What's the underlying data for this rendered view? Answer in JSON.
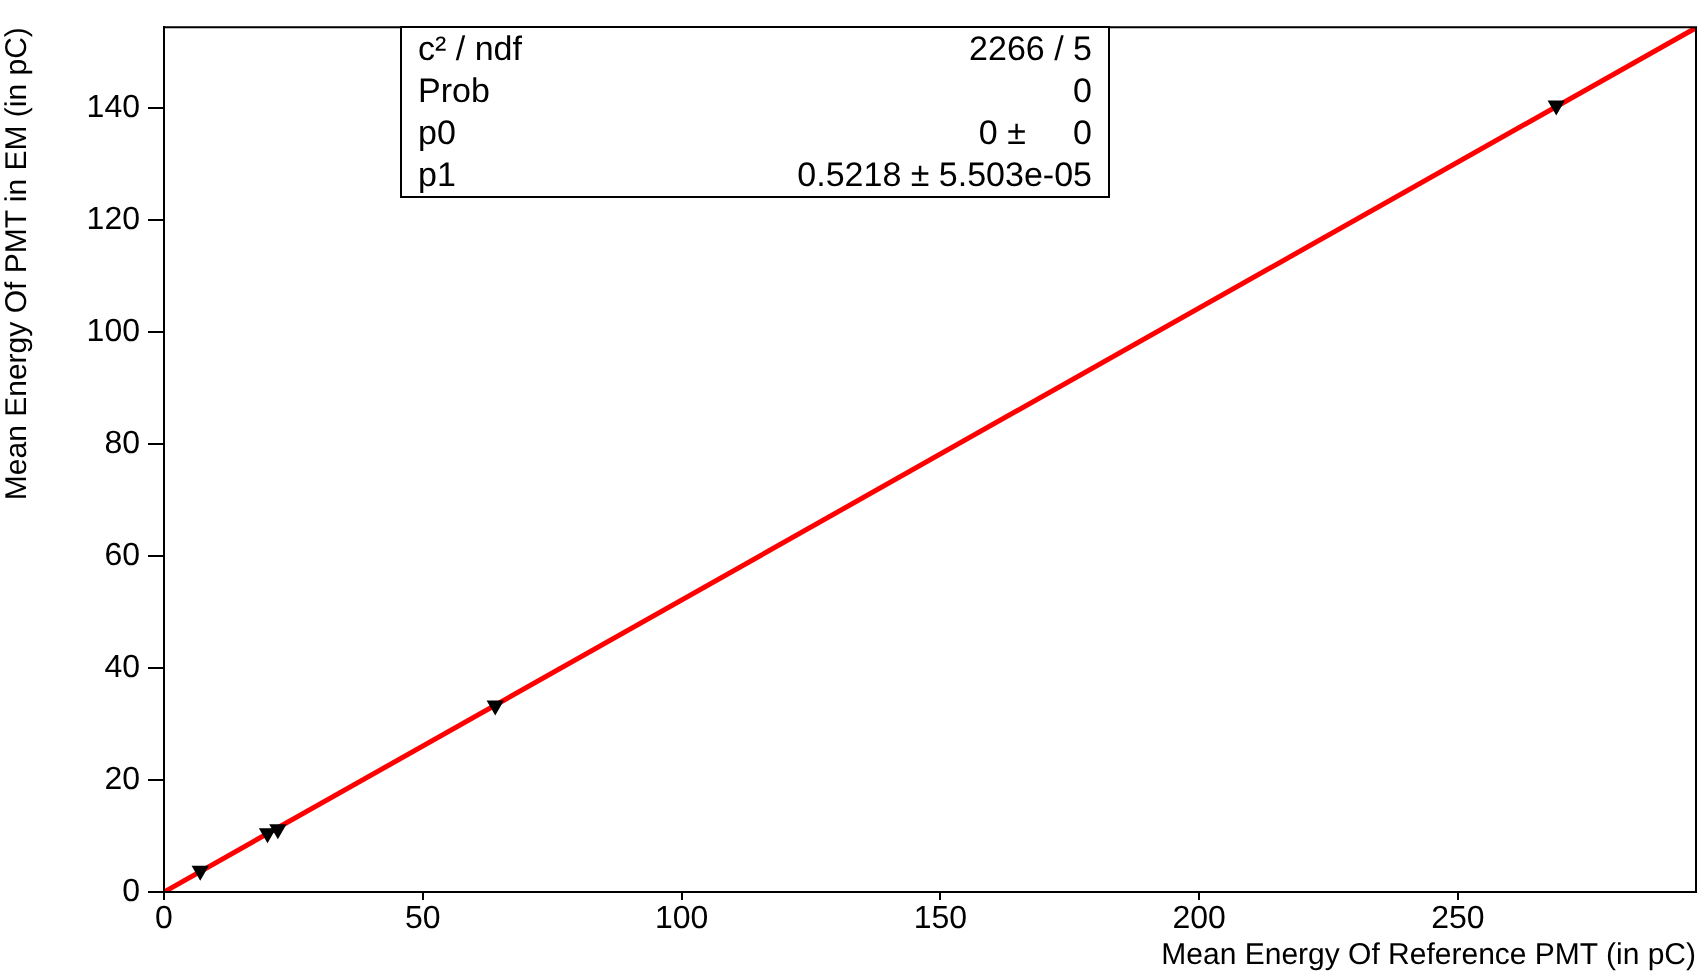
{
  "chart_data": {
    "type": "scatter",
    "xlabel": "Mean Energy Of Reference PMT (in pC)",
    "ylabel": "Mean Energy Of PMT in EM (in pC)",
    "xlim": [
      0,
      296
    ],
    "ylim": [
      0,
      154.5
    ],
    "xticks": [
      0,
      50,
      100,
      150,
      200,
      250
    ],
    "yticks": [
      0,
      20,
      40,
      60,
      80,
      100,
      120,
      140
    ],
    "grid": false,
    "legend": false,
    "marker": "triangle",
    "series": [
      {
        "type": "scatter",
        "color": "#000000",
        "x": [
          7,
          20,
          22,
          64,
          269
        ],
        "values": [
          3.8,
          10.5,
          11.2,
          33.3,
          140.5
        ]
      },
      {
        "type": "line",
        "color": "#ff0000",
        "x": [
          0,
          296
        ],
        "values": [
          0,
          154.4
        ],
        "marker": "none"
      }
    ],
    "annotations": [
      "c² / ndf",
      "2266 / 5",
      "Prob",
      "0",
      "p0",
      "0 ±     0",
      "p1",
      "0.5218 ± 5.503e-05"
    ]
  }
}
